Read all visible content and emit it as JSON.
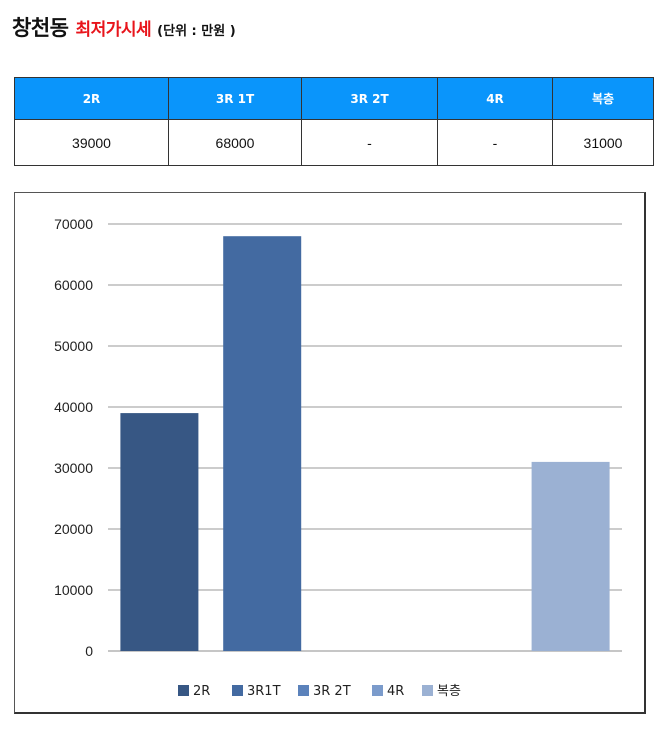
{
  "header": {
    "title": "창천동",
    "subtitle": "최저가시세",
    "unit": "(단위 : 만원 )"
  },
  "table": {
    "headers": [
      "2R",
      "3R 1T",
      "3R 2T",
      "4R",
      "복층"
    ],
    "values": [
      "39000",
      "68000",
      "-",
      "-",
      "31000"
    ]
  },
  "chart_data": {
    "type": "bar",
    "categories": [
      "2R",
      "3R1T",
      "3R 2T",
      "4R",
      "복층"
    ],
    "values": [
      39000,
      68000,
      0,
      0,
      31000
    ],
    "ylim": [
      0,
      70000
    ],
    "yticks": [
      "0",
      "10000",
      "20000",
      "30000",
      "40000",
      "50000",
      "60000",
      "70000"
    ],
    "grid": true,
    "legend_position": "bottom",
    "colors": [
      "#375784",
      "#436aa1",
      "#5b82bb",
      "#7b9bcb",
      "#9bb1d3"
    ]
  }
}
